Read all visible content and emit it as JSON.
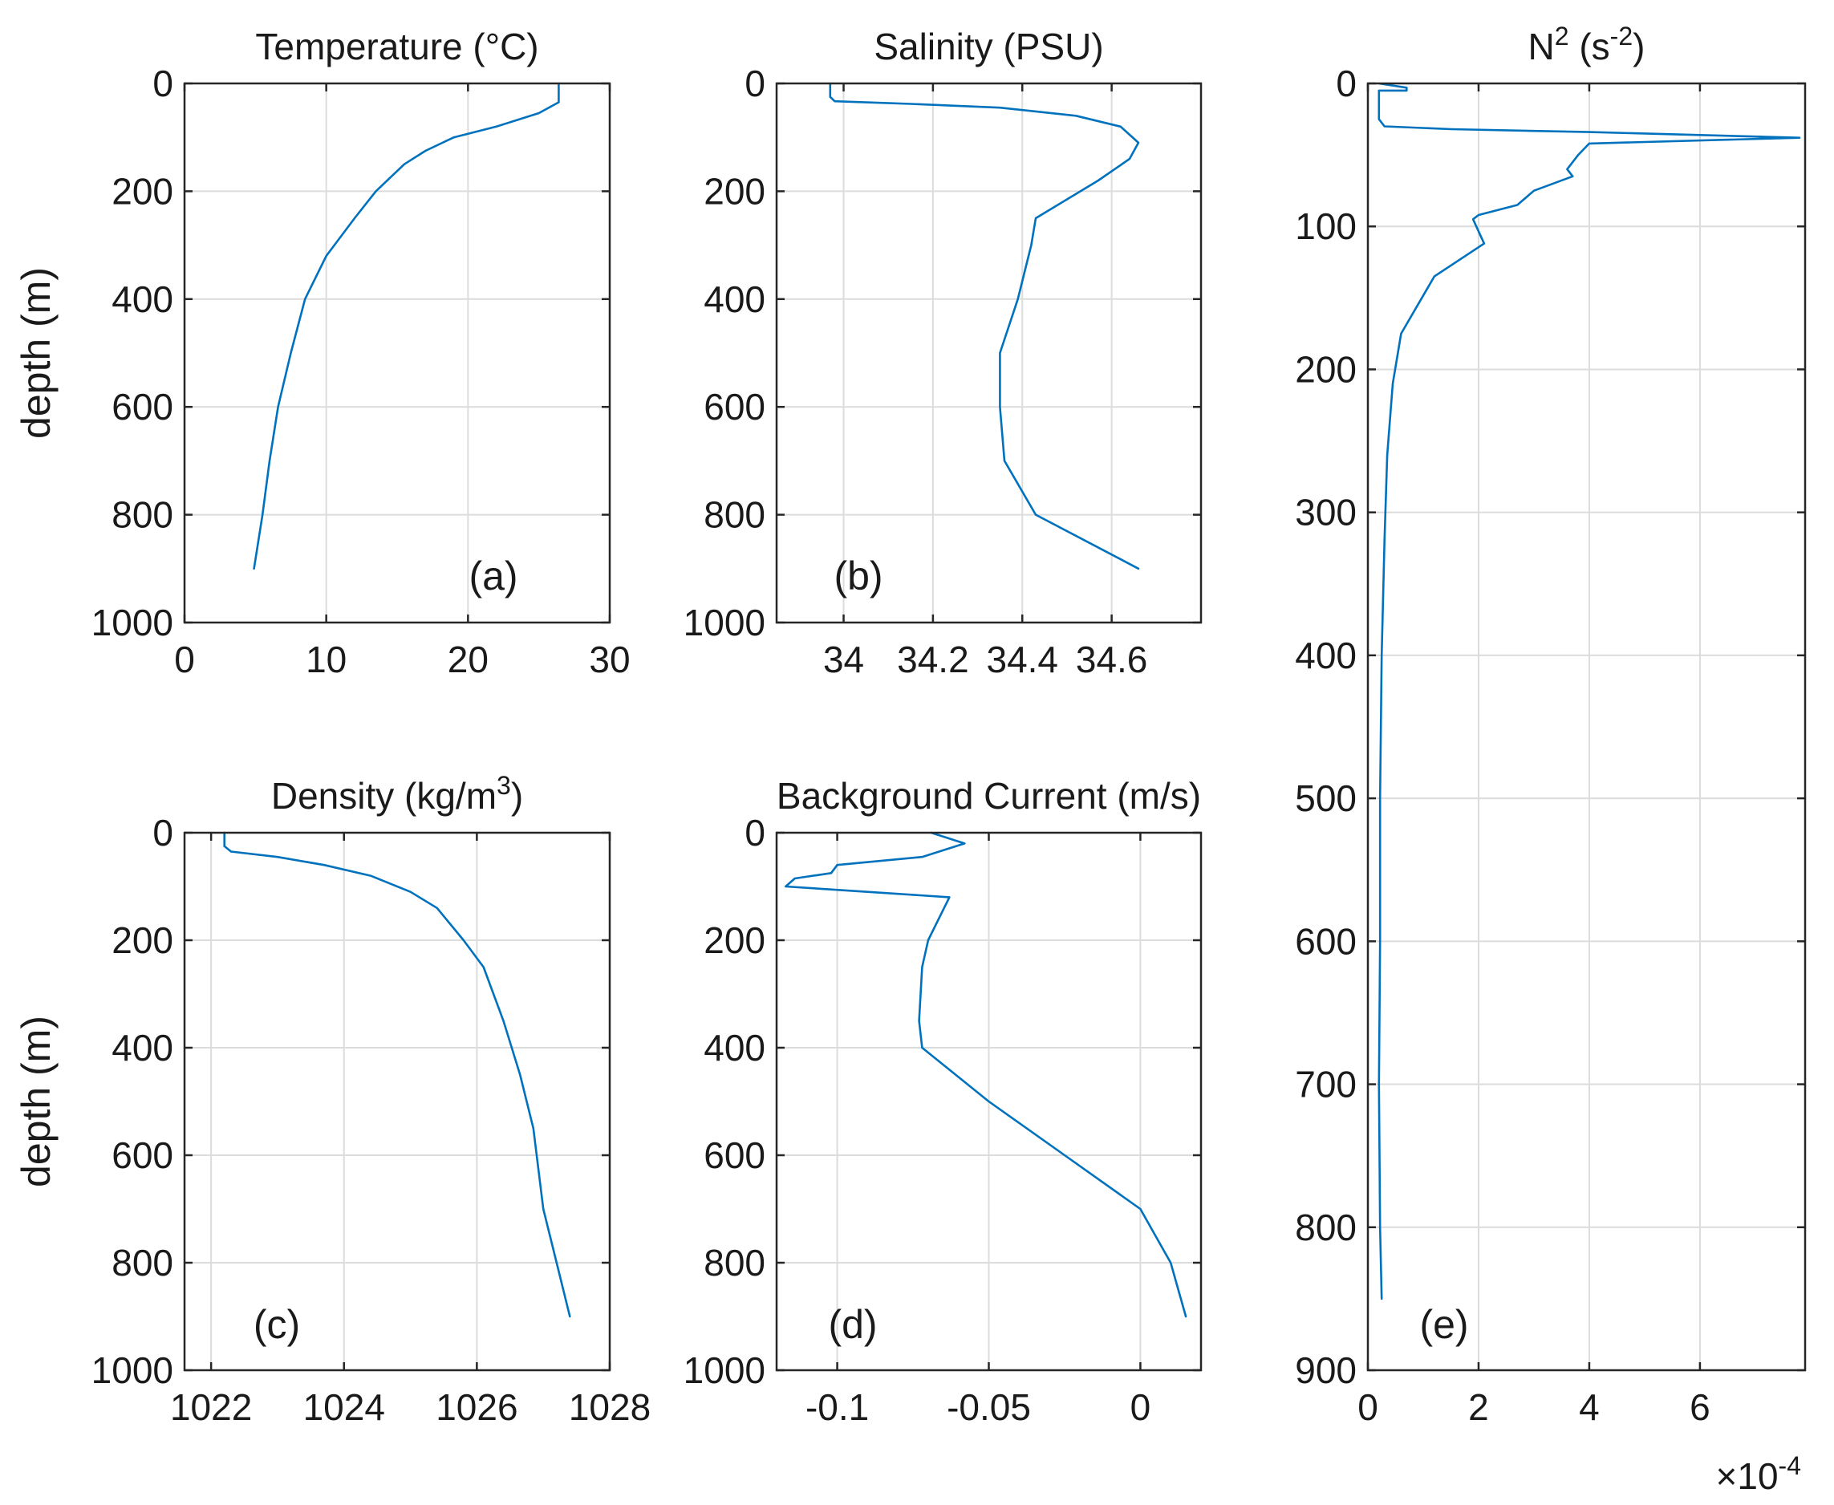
{
  "colors": {
    "line": "#0072BD",
    "axis": "#262626",
    "grid": "#dcdcdc",
    "text": "#1a1a1a"
  },
  "chart_data": [
    {
      "id": "a",
      "type": "line",
      "title": "Temperature (°C)",
      "title_parts": [
        {
          "t": "Temperature (°C)"
        }
      ],
      "ylabel": "depth (m)",
      "panel_label": "(a)",
      "xlim": [
        0,
        30
      ],
      "ylim": [
        0,
        1000
      ],
      "y_reversed": true,
      "grid": true,
      "xticks": [
        0,
        10,
        20,
        30
      ],
      "xtick_labels": [
        "0",
        "10",
        "20",
        "30"
      ],
      "yticks": [
        0,
        200,
        400,
        600,
        800,
        1000
      ],
      "ytick_labels": [
        "0",
        "200",
        "400",
        "600",
        "800",
        "1000"
      ],
      "series": [
        {
          "x": [
            26.4,
            26.4,
            25.0,
            22.0,
            19.0,
            17.0,
            15.5,
            13.5,
            12.0,
            10.0,
            8.5,
            7.5,
            6.6,
            6.0,
            5.5,
            4.9
          ],
          "y": [
            0,
            35,
            55,
            80,
            100,
            125,
            150,
            200,
            250,
            320,
            400,
            500,
            600,
            700,
            800,
            900
          ]
        }
      ]
    },
    {
      "id": "b",
      "type": "line",
      "title": "Salinity (PSU)",
      "title_parts": [
        {
          "t": "Salinity (PSU)"
        }
      ],
      "ylabel": "",
      "panel_label": "(b)",
      "xlim": [
        33.85,
        34.8
      ],
      "ylim": [
        0,
        1000
      ],
      "y_reversed": true,
      "grid": true,
      "xticks": [
        34.0,
        34.2,
        34.4,
        34.6
      ],
      "xtick_labels": [
        "34",
        "34.2",
        "34.4",
        "34.6"
      ],
      "yticks": [
        0,
        200,
        400,
        600,
        800,
        1000
      ],
      "ytick_labels": [
        "0",
        "200",
        "400",
        "600",
        "800",
        "1000"
      ],
      "series": [
        {
          "x": [
            33.97,
            33.97,
            33.98,
            34.15,
            34.35,
            34.52,
            34.62,
            34.66,
            34.64,
            34.57,
            34.43,
            34.42,
            34.39,
            34.35,
            34.35,
            34.36,
            34.43,
            34.66
          ],
          "y": [
            0,
            25,
            33,
            38,
            45,
            60,
            80,
            110,
            140,
            180,
            250,
            300,
            400,
            500,
            600,
            700,
            800,
            900
          ]
        }
      ]
    },
    {
      "id": "c",
      "type": "line",
      "title": "Density (kg/m3)",
      "title_parts": [
        {
          "t": "Density (kg/m"
        },
        {
          "t": "3",
          "sup": true
        },
        {
          "t": ")"
        }
      ],
      "ylabel": "depth (m)",
      "panel_label": "(c)",
      "xlim": [
        1021.6,
        1028
      ],
      "ylim": [
        0,
        1000
      ],
      "y_reversed": true,
      "grid": true,
      "xticks": [
        1022,
        1024,
        1026,
        1028
      ],
      "xtick_labels": [
        "1022",
        "1024",
        "1026",
        "1028"
      ],
      "yticks": [
        0,
        200,
        400,
        600,
        800,
        1000
      ],
      "ytick_labels": [
        "0",
        "200",
        "400",
        "600",
        "800",
        "1000"
      ],
      "series": [
        {
          "x": [
            1022.2,
            1022.2,
            1022.3,
            1023.0,
            1023.7,
            1024.4,
            1025.0,
            1025.4,
            1025.8,
            1026.1,
            1026.4,
            1026.65,
            1026.85,
            1027.0,
            1027.2,
            1027.4
          ],
          "y": [
            0,
            25,
            35,
            45,
            60,
            80,
            110,
            140,
            200,
            250,
            350,
            450,
            550,
            700,
            800,
            900
          ]
        }
      ]
    },
    {
      "id": "d",
      "type": "line",
      "title": "Background Current (m/s)",
      "title_parts": [
        {
          "t": "Background Current (m/s)"
        }
      ],
      "ylabel": "",
      "panel_label": "(d)",
      "xlim": [
        -0.12,
        0.02
      ],
      "ylim": [
        0,
        1000
      ],
      "y_reversed": true,
      "grid": true,
      "xticks": [
        -0.1,
        -0.05,
        0
      ],
      "xtick_labels": [
        "-0.1",
        "-0.05",
        "0"
      ],
      "yticks": [
        0,
        200,
        400,
        600,
        800,
        1000
      ],
      "ytick_labels": [
        "0",
        "200",
        "400",
        "600",
        "800",
        "1000"
      ],
      "series": [
        {
          "x": [
            -0.069,
            -0.058,
            -0.072,
            -0.1,
            -0.102,
            -0.114,
            -0.117,
            -0.063,
            -0.07,
            -0.072,
            -0.073,
            -0.072,
            -0.05,
            -0.025,
            0.0,
            0.01,
            0.015
          ],
          "y": [
            0,
            20,
            45,
            60,
            75,
            85,
            100,
            120,
            200,
            250,
            350,
            400,
            500,
            600,
            700,
            800,
            900
          ]
        }
      ]
    },
    {
      "id": "e",
      "type": "line",
      "title": "N2 (s-2)",
      "title_parts": [
        {
          "t": "N"
        },
        {
          "t": "2",
          "sup": true
        },
        {
          "t": " (s"
        },
        {
          "t": "-2",
          "sup": true
        },
        {
          "t": ")"
        }
      ],
      "ylabel": "",
      "panel_label": "(e)",
      "xlim": [
        0,
        7.9
      ],
      "x_multiplier": "×10",
      "x_multiplier_exp": "-4",
      "ylim": [
        0,
        900
      ],
      "y_reversed": true,
      "grid": true,
      "xticks": [
        0,
        2,
        4,
        6
      ],
      "xtick_labels": [
        "0",
        "2",
        "4",
        "6"
      ],
      "yticks": [
        0,
        100,
        200,
        300,
        400,
        500,
        600,
        700,
        800,
        900
      ],
      "ytick_labels": [
        "0",
        "100",
        "200",
        "300",
        "400",
        "500",
        "600",
        "700",
        "800",
        "900"
      ],
      "series": [
        {
          "x": [
            0.2,
            0.7,
            0.7,
            0.2,
            0.2,
            0.3,
            1.5,
            4.0,
            7.8,
            4.0,
            3.8,
            3.6,
            3.7,
            3.0,
            2.7,
            2.0,
            1.9,
            2.1,
            1.2,
            0.6,
            0.45,
            0.35,
            0.3,
            0.25,
            0.22,
            0.22,
            0.2,
            0.22,
            0.25
          ],
          "y": [
            0,
            3,
            5,
            5,
            25,
            30,
            32,
            34,
            38,
            42,
            50,
            60,
            65,
            75,
            85,
            92,
            95,
            112,
            135,
            175,
            210,
            260,
            320,
            400,
            500,
            600,
            700,
            800,
            850
          ]
        }
      ]
    }
  ]
}
